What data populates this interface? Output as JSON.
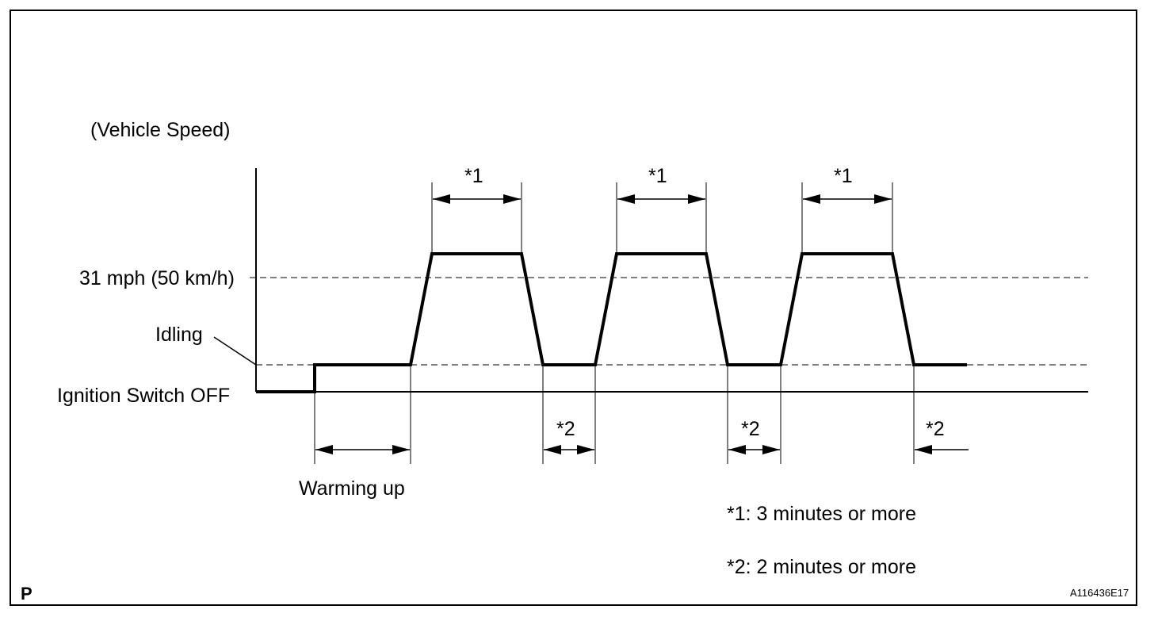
{
  "diagram": {
    "y_axis_label": "(Vehicle Speed)",
    "level_31mph_label": "31 mph (50 km/h)",
    "idling_label": "Idling",
    "ignition_off_label": "Ignition Switch OFF",
    "warming_up_label": "Warming up",
    "star1_markers": [
      "*1",
      "*1",
      "*1"
    ],
    "star2_markers": [
      "*2",
      "*2",
      "*2"
    ],
    "note_star1": "*1: 3 minutes or more",
    "note_star2": "*2: 2 minutes or more",
    "corner_letter": "P",
    "figure_id": "A116436E17"
  }
}
